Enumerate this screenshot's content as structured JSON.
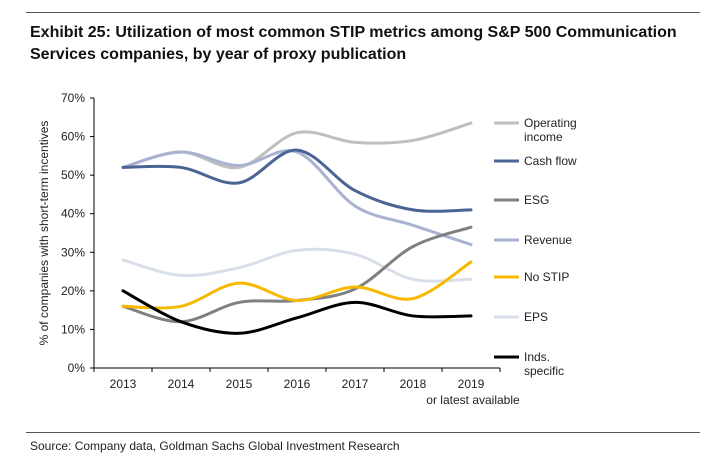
{
  "title_line1": "Exhibit 25: Utilization of most common STIP metrics among S&P 500 Communication",
  "title_line2": "Services companies, by year of proxy publication",
  "source": "Source: Company data, Goldman Sachs Global Investment Research",
  "chart_data": {
    "type": "line",
    "ylabel": "% of companies with short-term incentives",
    "ylim": [
      0,
      70
    ],
    "yticks": [
      "0%",
      "10%",
      "20%",
      "30%",
      "40%",
      "50%",
      "60%",
      "70%"
    ],
    "categories": [
      "2013",
      "2014",
      "2015",
      "2016",
      "2017",
      "2018",
      "2019"
    ],
    "x_note": "or latest available",
    "grid": false,
    "legend_position": "right",
    "series": [
      {
        "name": "Operating income",
        "legend_lines": [
          "Operating",
          "income"
        ],
        "color": "#bfbfbf",
        "values": [
          52,
          56,
          52,
          61,
          58.5,
          59,
          63.5
        ]
      },
      {
        "name": "Cash flow",
        "legend_lines": [
          "Cash flow"
        ],
        "color": "#4a6494",
        "values": [
          52,
          52,
          48,
          56.5,
          46,
          41,
          41
        ]
      },
      {
        "name": "ESG",
        "legend_lines": [
          "ESG"
        ],
        "color": "#808080",
        "values": [
          16,
          12,
          17,
          17.5,
          20.5,
          31.5,
          36.5
        ]
      },
      {
        "name": "Revenue",
        "legend_lines": [
          "Revenue"
        ],
        "color": "#a9b2d0",
        "values": [
          52,
          56,
          52.5,
          56,
          42,
          37,
          32
        ]
      },
      {
        "name": "No STIP",
        "legend_lines": [
          "No STIP"
        ],
        "color": "#f7b900",
        "values": [
          16,
          16,
          22,
          17.5,
          21,
          18,
          27.5
        ]
      },
      {
        "name": "EPS",
        "legend_lines": [
          "EPS"
        ],
        "color": "#d9dfea",
        "values": [
          28,
          24,
          26,
          30.5,
          29.5,
          23,
          23
        ]
      },
      {
        "name": "Inds. specific",
        "legend_lines": [
          "Inds.",
          "specific"
        ],
        "color": "#000000",
        "values": [
          20,
          12,
          9,
          13,
          17,
          13.5,
          13.5
        ]
      }
    ]
  }
}
